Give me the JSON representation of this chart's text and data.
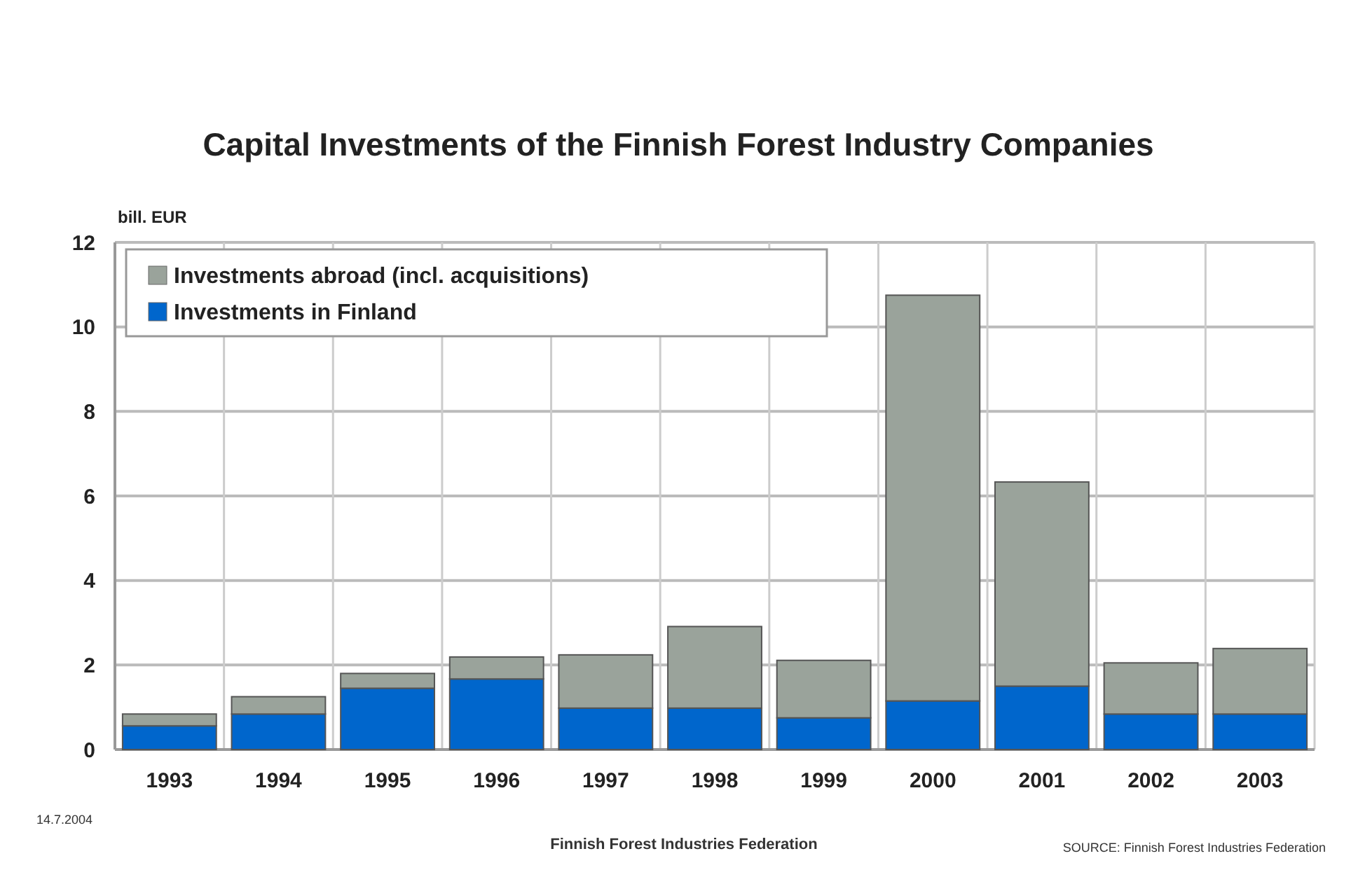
{
  "chart_data": {
    "type": "bar",
    "title": "Capital Investments of the Finnish Forest Industry Companies",
    "ylabel": "bill. EUR",
    "categories": [
      "1993",
      "1994",
      "1995",
      "1996",
      "1997",
      "1998",
      "1999",
      "2000",
      "2001",
      "2002",
      "2003"
    ],
    "stacked": true,
    "series": [
      {
        "name": "Investments in Finland",
        "color": "#0066cc",
        "values": [
          0.56,
          0.84,
          1.45,
          1.67,
          0.98,
          0.98,
          0.75,
          1.15,
          1.5,
          0.84,
          0.84
        ]
      },
      {
        "name": "Investments abroad (incl. acquisitions)",
        "color": "#9aa39b",
        "values": [
          0.28,
          0.41,
          0.35,
          0.52,
          1.26,
          1.93,
          1.36,
          9.6,
          4.83,
          1.21,
          1.55
        ]
      }
    ],
    "ylim": [
      0,
      12
    ],
    "yticks": [
      0,
      2,
      4,
      6,
      8,
      10,
      12
    ],
    "grid": true,
    "legend": "top left",
    "annotations": [
      "14.7.2004",
      "Finnish Forest Industries Federation",
      "SOURCE: Finnish Forest Industries Federation"
    ]
  }
}
